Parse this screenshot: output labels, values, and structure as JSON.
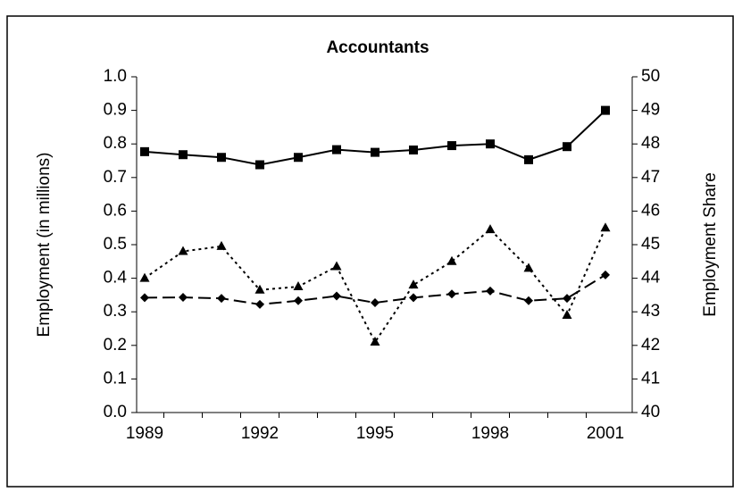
{
  "chart_data": {
    "type": "line",
    "title": "Accountants",
    "y_label": "Employment (in millions)",
    "y2_label": "Employment Share",
    "categories": [
      "1989",
      null,
      null,
      "1992",
      null,
      null,
      "1995",
      null,
      null,
      "1998",
      null,
      null,
      "2001"
    ],
    "ylim": [
      0,
      1
    ],
    "yticks": [
      {
        "value": 0,
        "label": "0.0"
      },
      0.1,
      0.2,
      0.3,
      0.4,
      0.5,
      0.6,
      0.7,
      0.8,
      0.9,
      {
        "value": 1,
        "label": "1.0"
      }
    ],
    "y2lim": [
      40,
      50
    ],
    "y2ticks": [
      40,
      41,
      42,
      43,
      44,
      45,
      46,
      47,
      48,
      49,
      50
    ],
    "series": [
      {
        "color": "#000000",
        "marker": "square",
        "dash": "solid",
        "values": [
          0.777,
          0.768,
          0.76,
          0.738,
          0.76,
          0.783,
          0.775,
          0.782,
          0.795,
          0.8,
          0.753,
          0.792,
          0.9
        ]
      },
      {
        "color": "#000000",
        "marker": "diamond",
        "dash": "dashed",
        "values": [
          0.342,
          0.343,
          0.34,
          0.322,
          0.333,
          0.347,
          0.327,
          0.342,
          0.353,
          0.362,
          0.333,
          0.34,
          0.41
        ]
      },
      {
        "color": "#000000",
        "marker": "triangle",
        "dash": "dotted",
        "axis": "y2",
        "values": [
          44.0,
          44.8,
          44.95,
          43.65,
          43.75,
          44.35,
          42.1,
          43.8,
          44.5,
          45.45,
          44.3,
          42.9,
          45.5
        ]
      }
    ]
  }
}
